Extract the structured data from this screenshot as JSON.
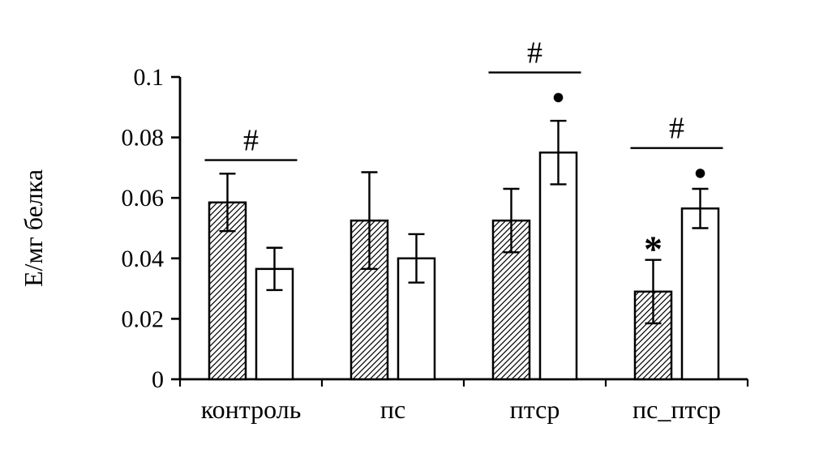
{
  "figure": {
    "background": "#ffffff",
    "stroke_color": "#000000"
  },
  "chart_data": {
    "type": "bar",
    "title": "",
    "xlabel": "",
    "ylabel": "Е/мг белка",
    "ylim": [
      0,
      0.1
    ],
    "yticks": [
      0,
      0.02,
      0.04,
      0.06,
      0.08,
      0.1
    ],
    "ytick_labels": [
      "0",
      "0.02",
      "0.04",
      "0.06",
      "0.08",
      "0.1"
    ],
    "categories": [
      "контроль",
      "пс",
      "птср",
      "пс_птср"
    ],
    "series": [
      {
        "name": "hatched-bars",
        "style": "hatched",
        "values": [
          0.0585,
          0.0525,
          0.0525,
          0.029
        ],
        "errors": [
          0.0095,
          0.016,
          0.0105,
          0.0105
        ]
      },
      {
        "name": "open-bars",
        "style": "open",
        "values": [
          0.0365,
          0.04,
          0.075,
          0.0565
        ],
        "errors": [
          0.007,
          0.008,
          0.0105,
          0.0065
        ]
      }
    ],
    "annotations": {
      "brackets": [
        {
          "group": 0,
          "label": "#",
          "y": 0.0725
        },
        {
          "group": 2,
          "label": "#",
          "y": 0.1015
        },
        {
          "group": 3,
          "label": "#",
          "y": 0.0765
        }
      ],
      "markers": [
        {
          "group": 2,
          "series": 1,
          "kind": "dot",
          "label": "●",
          "y": 0.0935
        },
        {
          "group": 3,
          "series": 1,
          "kind": "dot",
          "label": "●",
          "y": 0.0685
        },
        {
          "group": 3,
          "series": 0,
          "kind": "asterisk",
          "label": "*",
          "y": 0.0455
        }
      ]
    },
    "grid": false,
    "legend": false,
    "colors": {
      "bar_fill": "#ffffff",
      "stroke": "#000000"
    }
  }
}
